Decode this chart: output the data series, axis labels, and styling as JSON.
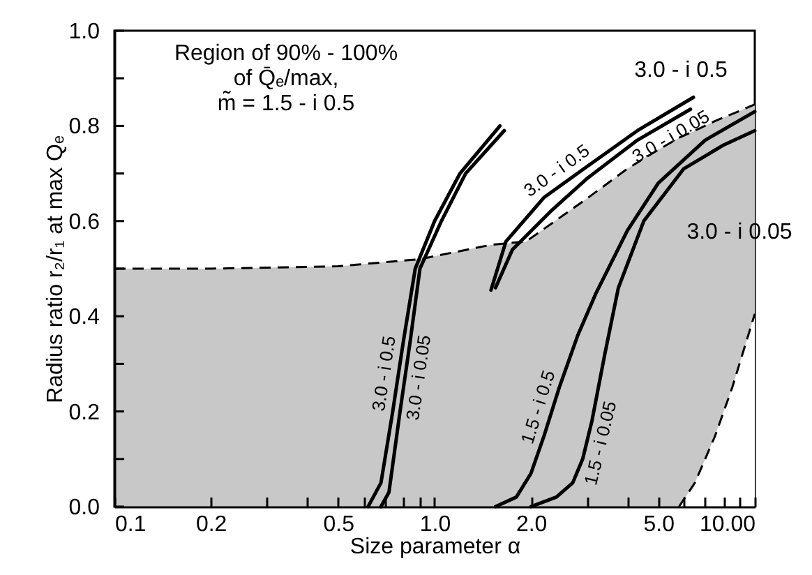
{
  "chart_data": {
    "type": "line",
    "xlabel": "Size parameter α",
    "ylabel": "Radius ratio r₂/r₁ at max Qₑ",
    "log": "x",
    "grid": false,
    "xlim": [
      0.1,
      10
    ],
    "ylim": [
      0,
      1
    ],
    "xticks": [
      {
        "value": 0.1,
        "label": "0.1"
      },
      {
        "value": 0.2,
        "label": "0.2"
      },
      {
        "value": 0.3,
        "label": null
      },
      {
        "value": 0.4,
        "label": null
      },
      {
        "value": 0.5,
        "label": "0.5"
      },
      {
        "value": 0.6,
        "label": null
      },
      {
        "value": 0.7,
        "label": null
      },
      {
        "value": 0.8,
        "label": null
      },
      {
        "value": 0.9,
        "label": null
      },
      {
        "value": 1,
        "label": "1.0"
      },
      {
        "value": 2,
        "label": "2.0"
      },
      {
        "value": 3,
        "label": null
      },
      {
        "value": 4,
        "label": null
      },
      {
        "value": 5,
        "label": "5.0"
      },
      {
        "value": 6,
        "label": null
      },
      {
        "value": 7,
        "label": null
      },
      {
        "value": 8,
        "label": null
      },
      {
        "value": 9,
        "label": null
      },
      {
        "value": 10,
        "label": "10.00"
      }
    ],
    "yticks": [
      {
        "value": 0,
        "label": "0.0"
      },
      {
        "value": 0.1,
        "label": null
      },
      {
        "value": 0.2,
        "label": "0.2"
      },
      {
        "value": 0.3,
        "label": null
      },
      {
        "value": 0.4,
        "label": "0.4"
      },
      {
        "value": 0.5,
        "label": null
      },
      {
        "value": 0.6,
        "label": "0.6"
      },
      {
        "value": 0.7,
        "label": null
      },
      {
        "value": 0.8,
        "label": "0.8"
      },
      {
        "value": 0.9,
        "label": null
      },
      {
        "value": 1,
        "label": "1.0"
      }
    ],
    "series": [
      {
        "type": "area",
        "color": "#c8c8c8",
        "line_style": "dashed",
        "x": [
          0.1,
          0.2,
          0.5,
          0.9,
          1.5,
          1.93,
          3,
          4,
          5,
          5.8,
          6.5,
          7.5,
          8.5,
          10
        ],
        "values": [
          0.5,
          0.5,
          0.505,
          0.52,
          0.55,
          0.557,
          0.648,
          0.71,
          0.75,
          0.775,
          0.79,
          0.81,
          0.825,
          0.845
        ]
      },
      {
        "type": "area",
        "color": "#ffffff",
        "line_style": "dashed",
        "x": [
          5.8,
          6.5,
          7.5,
          8.5,
          10
        ],
        "values": [
          0,
          0.05,
          0.147,
          0.25,
          0.405
        ]
      },
      {
        "name": "3.0 - i 0.5",
        "color": "#000000",
        "x": [
          0.62,
          0.68,
          0.74,
          0.8,
          0.87,
          1.0,
          1.2,
          1.6
        ],
        "values": [
          0,
          0.05,
          0.2,
          0.35,
          0.5,
          0.6,
          0.7,
          0.8
        ]
      },
      {
        "name": "3.0 - i 0.05",
        "color": "#000000",
        "x": [
          0.68,
          0.72,
          0.78,
          0.84,
          0.9,
          1.05,
          1.25,
          1.65
        ],
        "values": [
          0,
          0.03,
          0.2,
          0.35,
          0.5,
          0.6,
          0.7,
          0.79
        ]
      },
      {
        "name": "3.0 - i 0.5",
        "color": "#000000",
        "x": [
          1.5,
          1.67,
          2.2,
          2.97,
          4.3,
          6.43
        ],
        "values": [
          0.455,
          0.557,
          0.65,
          0.713,
          0.79,
          0.86
        ]
      },
      {
        "name": "3.0 - i 0.05",
        "color": "#000000",
        "x": [
          1.55,
          1.75,
          2.3,
          3.0,
          4.3,
          6.3
        ],
        "values": [
          0.46,
          0.54,
          0.62,
          0.69,
          0.77,
          0.835
        ]
      },
      {
        "name": "1.5 - i 0.5",
        "color": "#000000",
        "x": [
          1.55,
          1.8,
          2.0,
          2.2,
          2.45,
          2.8,
          3.2,
          4,
          5,
          7,
          10
        ],
        "values": [
          0,
          0.02,
          0.07,
          0.15,
          0.25,
          0.36,
          0.45,
          0.58,
          0.68,
          0.77,
          0.83
        ]
      },
      {
        "name": "1.5 - i 0.05",
        "color": "#000000",
        "x": [
          2.0,
          2.4,
          2.7,
          2.9,
          3.1,
          3.4,
          3.75,
          4.5,
          6,
          8,
          10
        ],
        "values": [
          0,
          0.02,
          0.05,
          0.1,
          0.18,
          0.32,
          0.46,
          0.6,
          0.71,
          0.76,
          0.79
        ]
      }
    ],
    "annotations": [
      "Region of 90% - 100%\nof Q̄ₑ/max,\nm̃ = 1.5 - i 0.5",
      "3.0 - i 0.5",
      "3.0 - i 0.05"
    ]
  }
}
